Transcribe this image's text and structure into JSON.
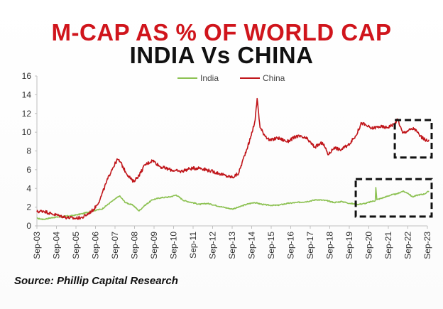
{
  "title": "M-CAP AS % OF WORLD CAP",
  "subtitle": "INDIA Vs CHINA",
  "source": "Source: Phillip Capital Research",
  "colors": {
    "title": "#d0151c",
    "subtitle": "#111111",
    "india": "#8cc152",
    "china": "#c0151a",
    "axis": "#bfbfbf",
    "highlight_box": "#111111"
  },
  "chart_data": {
    "type": "line",
    "title": "",
    "xlabel": "",
    "ylabel": "",
    "ylim": [
      0,
      16
    ],
    "yticks": [
      "0",
      "2",
      "4",
      "6",
      "8",
      "10",
      "12",
      "14",
      "16"
    ],
    "xticks": [
      "Sep-03",
      "Sep-04",
      "Sep-05",
      "Sep-06",
      "Sep-07",
      "Sep-08",
      "Sep-09",
      "Sep-10",
      "Sep-11",
      "Sep-12",
      "Sep-13",
      "Sep-14",
      "Sep-15",
      "Sep-16",
      "Sep-17",
      "Sep-18",
      "Sep-19",
      "Sep-20",
      "Sep-21",
      "Sep-22",
      "Sep-23"
    ],
    "legend_position": "top-center",
    "grid": false,
    "series": [
      {
        "name": "India",
        "color": "#8cc152",
        "x": [
          2003.67,
          2004.0,
          2004.5,
          2005.0,
          2005.5,
          2006.0,
          2006.5,
          2007.0,
          2007.5,
          2007.9,
          2008.2,
          2008.6,
          2008.9,
          2009.2,
          2009.6,
          2010.0,
          2010.5,
          2010.8,
          2011.2,
          2011.6,
          2012.0,
          2012.4,
          2012.8,
          2013.2,
          2013.67,
          2014.0,
          2014.4,
          2014.8,
          2015.2,
          2015.6,
          2016.0,
          2016.5,
          2017.0,
          2017.5,
          2018.0,
          2018.5,
          2018.9,
          2019.3,
          2019.7,
          2020.1,
          2020.5,
          2020.8,
          2021.0,
          2021.03,
          2021.08,
          2021.4,
          2021.8,
          2022.1,
          2022.4,
          2022.67,
          2022.9,
          2023.2,
          2023.5,
          2023.75
        ],
        "values": [
          0.8,
          0.7,
          0.9,
          1.0,
          1.1,
          1.3,
          1.6,
          1.8,
          2.6,
          3.2,
          2.5,
          2.2,
          1.6,
          2.2,
          2.8,
          3.0,
          3.1,
          3.3,
          2.7,
          2.5,
          2.3,
          2.4,
          2.2,
          2.0,
          1.8,
          2.0,
          2.3,
          2.5,
          2.3,
          2.2,
          2.2,
          2.4,
          2.5,
          2.6,
          2.8,
          2.7,
          2.5,
          2.6,
          2.4,
          2.3,
          2.4,
          2.6,
          2.7,
          4.1,
          2.8,
          3.0,
          3.3,
          3.4,
          3.7,
          3.5,
          3.1,
          3.3,
          3.4,
          3.7
        ]
      },
      {
        "name": "China",
        "color": "#c0151a",
        "x": [
          2003.67,
          2004.0,
          2004.4,
          2004.8,
          2005.2,
          2005.6,
          2006.0,
          2006.3,
          2006.6,
          2006.9,
          2007.2,
          2007.5,
          2007.8,
          2007.95,
          2008.2,
          2008.6,
          2008.9,
          2009.2,
          2009.6,
          2010.0,
          2010.5,
          2011.0,
          2011.5,
          2012.0,
          2012.5,
          2013.0,
          2013.4,
          2013.7,
          2014.0,
          2014.3,
          2014.6,
          2014.85,
          2014.95,
          2015.1,
          2015.3,
          2015.6,
          2016.0,
          2016.5,
          2017.0,
          2017.5,
          2017.9,
          2018.3,
          2018.6,
          2018.9,
          2019.2,
          2019.6,
          2020.0,
          2020.3,
          2020.8,
          2021.2,
          2021.6,
          2022.0,
          2022.15,
          2022.4,
          2022.7,
          2023.0,
          2023.3,
          2023.6,
          2023.75
        ],
        "values": [
          1.5,
          1.6,
          1.3,
          1.1,
          0.9,
          0.8,
          0.9,
          1.3,
          1.8,
          2.8,
          4.5,
          6.0,
          7.1,
          6.8,
          5.8,
          4.7,
          5.4,
          6.5,
          7.0,
          6.3,
          6.0,
          5.8,
          6.1,
          6.2,
          5.9,
          5.6,
          5.3,
          5.2,
          5.6,
          7.5,
          9.3,
          11.3,
          13.6,
          10.5,
          9.8,
          9.1,
          9.4,
          9.0,
          9.6,
          9.3,
          8.4,
          8.9,
          7.6,
          8.4,
          8.1,
          8.6,
          9.6,
          11.0,
          10.4,
          10.6,
          10.5,
          10.9,
          11.4,
          9.9,
          10.2,
          10.4,
          9.6,
          9.1,
          9.2
        ]
      }
    ],
    "highlights": [
      {
        "x_range": [
          2022.0,
          2023.67
        ],
        "y_range": [
          7.3,
          11.3
        ]
      },
      {
        "x_range": [
          2020.0,
          2023.67
        ],
        "y_range": [
          1.0,
          5.0
        ]
      }
    ]
  }
}
